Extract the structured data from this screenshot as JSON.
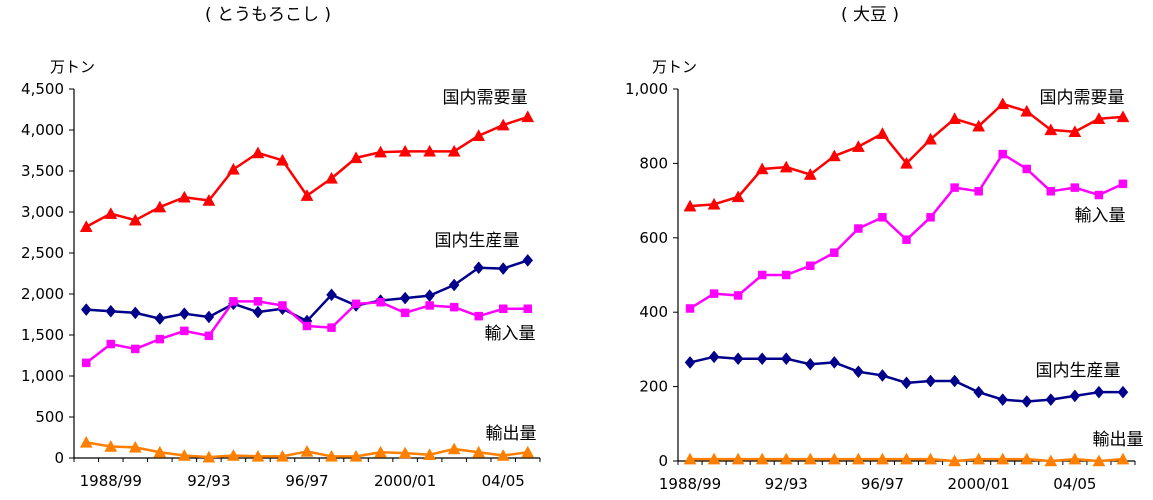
{
  "chart_data": [
    {
      "type": "line",
      "title": "( とうもろこし )",
      "ylabel": "万トン",
      "ylim": [
        0,
        4500
      ],
      "yticks": [
        0,
        500,
        1000,
        1500,
        2000,
        2500,
        3000,
        3500,
        4000,
        4500
      ],
      "ytick_labels": [
        "0",
        "500",
        "1,000",
        "1,500",
        "2,000",
        "2,500",
        "3,000",
        "3,500",
        "4,000",
        "4,500"
      ],
      "xtick_labels": [
        "1988/99",
        "92/93",
        "96/97",
        "2000/01",
        "04/05"
      ],
      "xtick_positions": [
        1,
        5,
        9,
        13,
        17
      ],
      "n_points": 19,
      "grid": false,
      "series": [
        {
          "name": "国内需要量",
          "color": "#ff0000",
          "marker": "triangle",
          "values": [
            2820,
            2980,
            2900,
            3060,
            3180,
            3140,
            3520,
            3720,
            3630,
            3200,
            3410,
            3660,
            3730,
            3740,
            3740,
            3740,
            3930,
            4060,
            4160
          ]
        },
        {
          "name": "国内生産量",
          "color": "#00008b",
          "marker": "diamond",
          "values": [
            1810,
            1790,
            1770,
            1700,
            1760,
            1720,
            1880,
            1780,
            1820,
            1670,
            1990,
            1860,
            1920,
            1950,
            1980,
            2110,
            2320,
            2310,
            2410
          ]
        },
        {
          "name": "輸入量",
          "color": "#ff00ff",
          "marker": "square",
          "values": [
            1160,
            1390,
            1330,
            1450,
            1550,
            1490,
            1910,
            1910,
            1860,
            1610,
            1590,
            1880,
            1900,
            1770,
            1860,
            1840,
            1730,
            1820,
            1820
          ]
        },
        {
          "name": "輸出量",
          "color": "#ff8000",
          "marker": "triangle",
          "values": [
            190,
            140,
            130,
            70,
            30,
            10,
            30,
            20,
            20,
            80,
            20,
            20,
            70,
            60,
            40,
            110,
            70,
            30,
            70
          ]
        }
      ]
    },
    {
      "type": "line",
      "title": "( 大豆 )",
      "ylabel": "万トン",
      "ylim": [
        0,
        1000
      ],
      "yticks": [
        0,
        200,
        400,
        600,
        800,
        1000
      ],
      "ytick_labels": [
        "0",
        "200",
        "400",
        "600",
        "800",
        "1,000"
      ],
      "xtick_labels": [
        "1988/99",
        "92/93",
        "96/97",
        "2000/01",
        "04/05"
      ],
      "xtick_positions": [
        0,
        4,
        8,
        12,
        16
      ],
      "n_points": 19,
      "grid": false,
      "series": [
        {
          "name": "国内需要量",
          "color": "#ff0000",
          "marker": "triangle",
          "values": [
            685,
            690,
            710,
            785,
            790,
            770,
            820,
            845,
            880,
            800,
            865,
            920,
            900,
            960,
            940,
            890,
            885,
            920,
            925
          ]
        },
        {
          "name": "輸入量",
          "color": "#ff00ff",
          "marker": "square",
          "values": [
            410,
            450,
            445,
            500,
            500,
            525,
            560,
            625,
            655,
            595,
            655,
            735,
            725,
            825,
            785,
            725,
            735,
            715,
            745
          ]
        },
        {
          "name": "国内生産量",
          "color": "#00008b",
          "marker": "diamond",
          "values": [
            265,
            280,
            275,
            275,
            275,
            260,
            265,
            240,
            230,
            210,
            215,
            215,
            185,
            165,
            160,
            165,
            175,
            185,
            185
          ]
        },
        {
          "name": "輸出量",
          "color": "#ff8000",
          "marker": "triangle",
          "values": [
            5,
            5,
            5,
            5,
            5,
            5,
            5,
            5,
            5,
            5,
            5,
            0,
            5,
            5,
            5,
            0,
            5,
            0,
            5
          ]
        }
      ]
    }
  ]
}
